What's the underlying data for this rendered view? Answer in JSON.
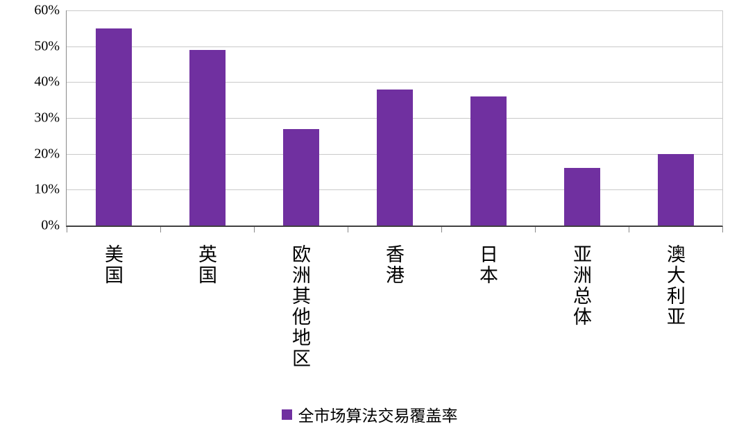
{
  "chart_data": {
    "type": "bar",
    "title": "",
    "categories": [
      "美国",
      "英国",
      "欧洲其他地区",
      "香港",
      "日本",
      "亚洲总体",
      "澳大利亚"
    ],
    "values": [
      55,
      49,
      27,
      38,
      36,
      16,
      20
    ],
    "unit": "%",
    "series_name": "全市场算法交易覆盖率",
    "ylim": [
      0,
      60
    ],
    "ytick_step": 10,
    "ytick_labels": [
      "0%",
      "10%",
      "20%",
      "30%",
      "40%",
      "50%",
      "60%"
    ],
    "grid": "horizontal",
    "legend_position": "bottom",
    "bar_color": "#7030A0",
    "gridline_color": "#c9c9c9"
  },
  "legend": {
    "label": "全市场算法交易覆盖率",
    "swatch_color": "#7030A0"
  }
}
